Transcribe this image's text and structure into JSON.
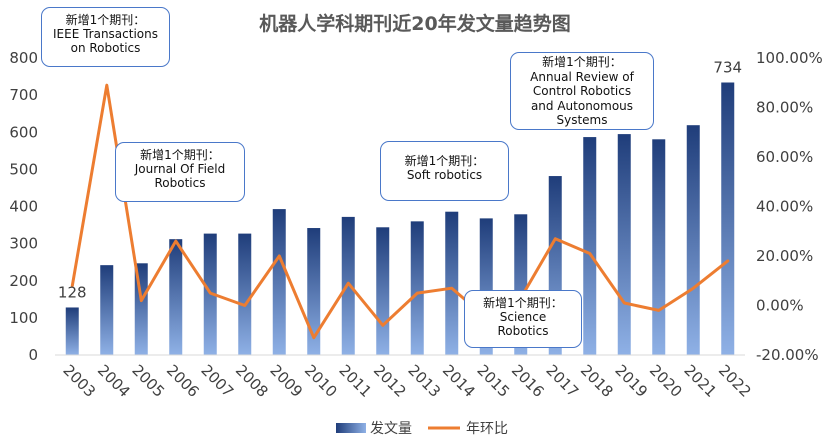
{
  "chart_data": {
    "type": "bar",
    "title": "机器人学科期刊近20年发文量趋势图",
    "categories": [
      "2003",
      "2004",
      "2005",
      "2006",
      "2007",
      "2008",
      "2009",
      "2010",
      "2011",
      "2012",
      "2013",
      "2014",
      "2015",
      "2016",
      "2017",
      "2018",
      "2019",
      "2020",
      "2021",
      "2022"
    ],
    "series": [
      {
        "name": "发文量",
        "kind": "bar",
        "axis": "left",
        "values": [
          128,
          242,
          247,
          312,
          327,
          327,
          393,
          342,
          372,
          344,
          360,
          386,
          368,
          379,
          482,
          587,
          595,
          581,
          619,
          734
        ]
      },
      {
        "name": "年环比",
        "kind": "line",
        "axis": "right",
        "values": [
          0.08,
          0.89,
          0.02,
          0.26,
          0.05,
          0.0,
          0.2,
          -0.13,
          0.09,
          -0.08,
          0.05,
          0.07,
          -0.05,
          0.03,
          0.27,
          0.21,
          0.01,
          -0.02,
          0.07,
          0.18
        ]
      }
    ],
    "ylim": [
      0,
      800
    ],
    "y_ticks": [
      "0",
      "100",
      "200",
      "300",
      "400",
      "500",
      "600",
      "700",
      "800"
    ],
    "y2lim": [
      -0.2,
      1.0
    ],
    "y2_ticks": [
      "-20.00%",
      "0.00%",
      "20.00%",
      "40.00%",
      "60.00%",
      "80.00%",
      "100.00%"
    ],
    "data_labels": [
      {
        "category": "2003",
        "text": "128"
      },
      {
        "category": "2022",
        "text": "734"
      }
    ],
    "legend_position": "bottom",
    "colors": {
      "bar_top": "#1f3d7a",
      "bar_bottom": "#8fb1e6",
      "line": "#ed7d31",
      "callout_border": "#4a78c9",
      "axis_text": "#404040"
    },
    "annotations": [
      {
        "lines": [
          "新增1个期刊：",
          "IEEE Transactions",
          "on Robotics"
        ]
      },
      {
        "lines": [
          "新增1个期刊：",
          "Journal Of Field",
          "Robotics"
        ]
      },
      {
        "lines": [
          "新增1个期刊：",
          "Soft robotics"
        ]
      },
      {
        "lines": [
          "新增1个期刊：",
          "Annual Review of",
          "Control Robotics",
          "and Autonomous",
          "Systems"
        ]
      },
      {
        "lines": [
          "新增1个期刊：",
          "Science",
          "Robotics"
        ]
      }
    ]
  }
}
